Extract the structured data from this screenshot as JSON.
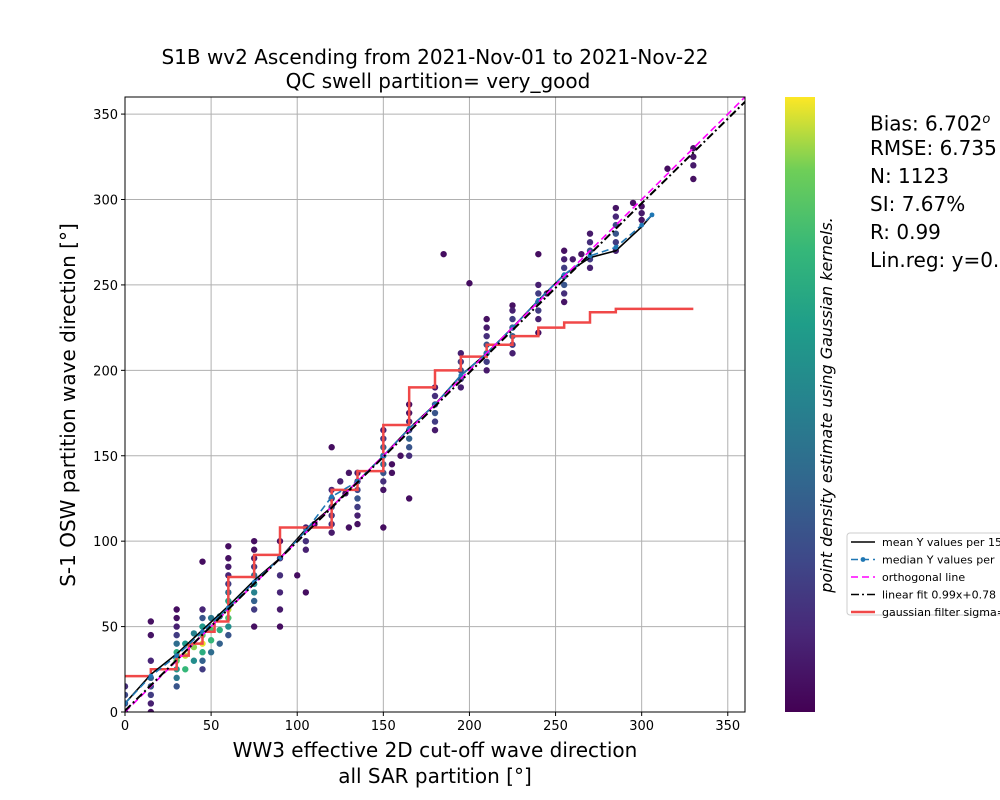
{
  "chart_data": {
    "type": "scatter",
    "title": "S1B wv2 Ascending from 2021-Nov-01 to 2021-Nov-22",
    "subtitle": "QC swell partition= very_good",
    "xlabel_line1": "WW3 effective 2D cut-off wave direction",
    "xlabel_line2": "all SAR partition [°]",
    "ylabel": "S-1 OSW partition wave direction [°]",
    "xlim": [
      0,
      360
    ],
    "ylim": [
      0,
      360
    ],
    "xticks": [
      0,
      50,
      100,
      150,
      200,
      250,
      300,
      350
    ],
    "yticks": [
      0,
      50,
      100,
      150,
      200,
      250,
      300,
      350
    ],
    "grid": true,
    "colorbar_label": "point density estimate using Gaussian kernels.",
    "colormap": "viridis",
    "stats": {
      "bias": "Bias: 6.702",
      "bias_unit": "o",
      "rmse": "RMSE: 6.735",
      "n": "N: 1123",
      "si": "SI: 7.67%",
      "r": "R: 0.99",
      "linreg": "Lin.reg: y=0."
    },
    "legend": {
      "placement": "right",
      "entries": [
        {
          "label": "mean Y values per 15",
          "color": "#000000",
          "style": "solid",
          "marker": false
        },
        {
          "label": "median Y values per",
          "color": "#1f77b4",
          "style": "dashed",
          "marker": true
        },
        {
          "label": "orthogonal line",
          "color": "#ff00ff",
          "style": "dashed",
          "marker": false
        },
        {
          "label": "linear fit 0.99x+0.78",
          "color": "#000000",
          "style": "dashdot",
          "marker": false
        },
        {
          "label": "gaussian filter sigma=",
          "color": "#f04848",
          "style": "solid",
          "marker": false
        }
      ]
    },
    "series": [
      {
        "name": "mean Y values per 15",
        "x": [
          0,
          15,
          30,
          45,
          60,
          75,
          90,
          105,
          120,
          135,
          150,
          165,
          180,
          195,
          210,
          225,
          240,
          255,
          270,
          285,
          300,
          306
        ],
        "y": [
          5,
          22,
          34,
          48,
          62,
          77,
          90,
          107,
          120,
          135,
          150,
          166,
          180,
          197,
          210,
          225,
          241,
          256,
          266,
          270,
          284,
          291
        ]
      },
      {
        "name": "median Y values per",
        "x": [
          0,
          15,
          30,
          45,
          60,
          75,
          90,
          105,
          120,
          135,
          150,
          165,
          180,
          195,
          210,
          225,
          240,
          255,
          270,
          285,
          300,
          306
        ],
        "y": [
          5,
          21,
          33,
          47,
          61,
          76,
          90,
          106,
          126,
          135,
          150,
          166,
          180,
          197,
          210,
          225,
          241,
          256,
          267,
          272,
          285,
          291
        ]
      },
      {
        "name": "orthogonal line",
        "x": [
          0,
          360
        ],
        "y": [
          0,
          360
        ]
      },
      {
        "name": "linear fit 0.99x+0.78",
        "x": [
          0,
          360
        ],
        "y": [
          0.78,
          357.18
        ]
      },
      {
        "name": "gaussian filter sigma=",
        "x": [
          0,
          15,
          15,
          30,
          30,
          37,
          37,
          45,
          45,
          52,
          52,
          60,
          60,
          75,
          75,
          90,
          90,
          105,
          105,
          120,
          120,
          135,
          135,
          150,
          150,
          165,
          165,
          180,
          180,
          195,
          195,
          210,
          210,
          225,
          225,
          240,
          240,
          255,
          255,
          270,
          270,
          285,
          285,
          330
        ],
        "y": [
          21,
          21,
          25,
          25,
          33,
          33,
          40,
          40,
          47,
          47,
          53,
          53,
          79,
          79,
          92,
          92,
          108,
          108,
          108,
          108,
          130,
          130,
          141,
          141,
          168,
          168,
          190,
          190,
          200,
          200,
          208,
          208,
          215,
          215,
          220,
          220,
          225,
          225,
          228,
          228,
          234,
          234,
          236,
          236
        ]
      }
    ],
    "scatter_points": {
      "x": [
        0,
        0,
        0,
        0,
        15,
        15,
        15,
        15,
        15,
        15,
        15,
        15,
        30,
        30,
        30,
        30,
        30,
        30,
        30,
        30,
        30,
        30,
        35,
        35,
        35,
        40,
        40,
        40,
        45,
        45,
        45,
        45,
        45,
        45,
        45,
        45,
        45,
        50,
        50,
        50,
        50,
        55,
        55,
        55,
        60,
        60,
        60,
        60,
        60,
        60,
        60,
        60,
        60,
        60,
        60,
        75,
        75,
        75,
        75,
        75,
        75,
        75,
        75,
        75,
        75,
        90,
        90,
        90,
        90,
        90,
        90,
        100,
        105,
        105,
        105,
        105,
        110,
        120,
        120,
        120,
        120,
        120,
        120,
        120,
        125,
        128,
        130,
        130,
        135,
        135,
        135,
        135,
        135,
        135,
        135,
        150,
        150,
        150,
        150,
        150,
        150,
        150,
        150,
        150,
        155,
        155,
        160,
        165,
        165,
        165,
        165,
        165,
        165,
        165,
        165,
        180,
        180,
        180,
        180,
        180,
        180,
        185,
        195,
        195,
        195,
        195,
        195,
        200,
        210,
        210,
        210,
        210,
        210,
        210,
        210,
        225,
        225,
        225,
        225,
        225,
        225,
        225,
        240,
        240,
        240,
        240,
        240,
        240,
        240,
        245,
        255,
        255,
        255,
        255,
        255,
        255,
        255,
        260,
        265,
        270,
        270,
        270,
        270,
        270,
        285,
        285,
        285,
        285,
        285,
        285,
        295,
        300,
        300,
        300,
        315,
        330,
        330,
        330,
        330
      ],
      "y": [
        0,
        5,
        10,
        15,
        0,
        5,
        10,
        15,
        20,
        30,
        45,
        53,
        15,
        20,
        25,
        30,
        35,
        40,
        45,
        50,
        55,
        60,
        25,
        33,
        40,
        30,
        38,
        46,
        25,
        30,
        35,
        40,
        45,
        50,
        55,
        60,
        88,
        35,
        42,
        48,
        55,
        40,
        48,
        56,
        45,
        50,
        55,
        60,
        65,
        70,
        75,
        80,
        85,
        90,
        97,
        50,
        60,
        65,
        70,
        75,
        80,
        85,
        90,
        95,
        100,
        50,
        60,
        70,
        80,
        90,
        100,
        80,
        70,
        95,
        100,
        108,
        110,
        105,
        110,
        115,
        120,
        125,
        130,
        155,
        135,
        128,
        108,
        140,
        110,
        115,
        120,
        125,
        130,
        135,
        140,
        130,
        135,
        140,
        145,
        150,
        155,
        160,
        165,
        108,
        140,
        145,
        150,
        125,
        150,
        155,
        160,
        165,
        170,
        175,
        180,
        165,
        170,
        175,
        180,
        185,
        190,
        268,
        190,
        195,
        200,
        205,
        210,
        251,
        200,
        205,
        210,
        215,
        220,
        225,
        230,
        210,
        215,
        220,
        225,
        230,
        235,
        238,
        222,
        230,
        235,
        240,
        245,
        250,
        268,
        245,
        240,
        245,
        250,
        255,
        260,
        265,
        270,
        265,
        268,
        260,
        265,
        270,
        275,
        280,
        270,
        275,
        280,
        285,
        290,
        295,
        298,
        288,
        292,
        296,
        318,
        312,
        320,
        325,
        330
      ],
      "d": [
        0.15,
        0.2,
        0.25,
        0.15,
        0.05,
        0.1,
        0.2,
        0.3,
        0.35,
        0.12,
        0.06,
        0.05,
        0.3,
        0.45,
        0.6,
        0.85,
        0.7,
        0.4,
        0.2,
        0.1,
        0.05,
        0.04,
        0.75,
        0.95,
        0.6,
        0.55,
        0.9,
        0.5,
        0.2,
        0.35,
        0.7,
        0.98,
        0.85,
        0.6,
        0.3,
        0.12,
        0.04,
        0.4,
        0.75,
        0.8,
        0.45,
        0.35,
        0.7,
        0.5,
        0.3,
        0.55,
        0.8,
        0.95,
        0.65,
        0.4,
        0.2,
        0.12,
        0.08,
        0.05,
        0.04,
        0.05,
        0.2,
        0.35,
        0.5,
        0.55,
        0.4,
        0.2,
        0.1,
        0.05,
        0.04,
        0.04,
        0.08,
        0.12,
        0.15,
        0.1,
        0.05,
        0.04,
        0.04,
        0.1,
        0.15,
        0.1,
        0.06,
        0.08,
        0.15,
        0.2,
        0.25,
        0.2,
        0.12,
        0.04,
        0.1,
        0.06,
        0.05,
        0.06,
        0.05,
        0.1,
        0.2,
        0.3,
        0.25,
        0.15,
        0.08,
        0.06,
        0.15,
        0.3,
        0.4,
        0.45,
        0.35,
        0.2,
        0.1,
        0.04,
        0.05,
        0.04,
        0.05,
        0.04,
        0.15,
        0.3,
        0.35,
        0.25,
        0.12,
        0.06,
        0.04,
        0.08,
        0.2,
        0.3,
        0.25,
        0.15,
        0.08,
        0.04,
        0.1,
        0.2,
        0.3,
        0.2,
        0.1,
        0.04,
        0.08,
        0.2,
        0.35,
        0.3,
        0.15,
        0.08,
        0.05,
        0.1,
        0.2,
        0.35,
        0.3,
        0.2,
        0.1,
        0.05,
        0.04,
        0.1,
        0.2,
        0.3,
        0.2,
        0.1,
        0.04,
        0.06,
        0.06,
        0.15,
        0.3,
        0.35,
        0.2,
        0.1,
        0.05,
        0.08,
        0.06,
        0.1,
        0.2,
        0.3,
        0.15,
        0.08,
        0.1,
        0.2,
        0.3,
        0.25,
        0.12,
        0.06,
        0.05,
        0.06,
        0.08,
        0.05,
        0.04,
        0.05,
        0.08,
        0.06,
        0.05
      ]
    }
  }
}
